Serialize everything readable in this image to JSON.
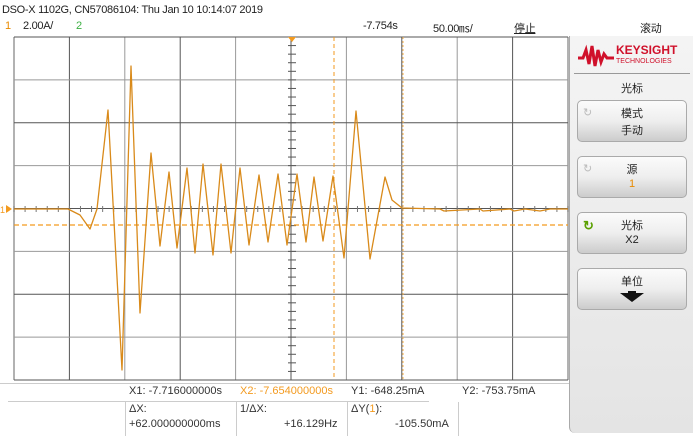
{
  "header": {
    "title": "DSO-X 1102G, CN57086104: Thu Jan 10 10:14:07 2019"
  },
  "status": {
    "ch1_num": "1",
    "ch1_scale": "2.00A/",
    "ch2_num": "2",
    "time_offset": "-7.754s",
    "time_scale": "50.00㎳/",
    "run_state": "停止",
    "mode": "滚动"
  },
  "colors": {
    "ch1": "#e88a00",
    "ch2": "#3cb043",
    "brand": "#d0112b",
    "knob_active": "#5aa000"
  },
  "brand": {
    "name": "KEYSIGHT",
    "sub": "TECHNOLOGIES"
  },
  "softkeys": {
    "menu_title": "光标",
    "items": [
      {
        "label": "模式",
        "value": "手动",
        "icon": "rotate-knob-icon",
        "active": false
      },
      {
        "label": "源",
        "value": "1",
        "icon": "rotate-knob-icon",
        "active": false
      },
      {
        "label": "光标",
        "value": "X2",
        "icon": "rotate-knob-icon",
        "active": true
      },
      {
        "label": "单位",
        "value": "",
        "icon": "arrow-down-icon",
        "active": false
      }
    ]
  },
  "cursors": {
    "x1": "X1: -7.716000000s",
    "x2": "X2: -7.654000000s",
    "y1": "Y1: -648.25mA",
    "y2": "Y2: -753.75mA",
    "dx_label": "ΔX:",
    "dx_value": "+62.000000000ms",
    "inv_dx_label": "1/ΔX:",
    "inv_dx_value": "+16.129Hz",
    "dy_label_pre": "ΔY(",
    "dy_label_src": "1",
    "dy_label_post": "):",
    "dy_value": "-105.50mA"
  },
  "ground_marker": "1"
}
